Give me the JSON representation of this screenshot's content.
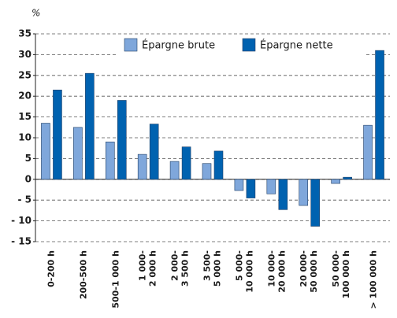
{
  "chart_data": {
    "type": "bar",
    "unit_label": "%",
    "categories": [
      [
        "0-200 h"
      ],
      [
        "200-500 h"
      ],
      [
        "500-1 000 h"
      ],
      [
        "1 000-",
        "2 000 h"
      ],
      [
        "2 000-",
        "3 500 h"
      ],
      [
        "3 500-",
        "5 000 h"
      ],
      [
        "5 000-",
        "10 000 h"
      ],
      [
        "10 000-",
        "20 000 h"
      ],
      [
        "20 000-",
        "50 000 h"
      ],
      [
        "50 000-",
        "100 000 h"
      ],
      [
        "> 100 000 h"
      ]
    ],
    "series": [
      {
        "name": "Épargne brute",
        "color": "#7fa7db",
        "values": [
          13.5,
          12.5,
          9,
          6,
          4.3,
          3.8,
          -2.7,
          -3.5,
          -6.3,
          -1,
          13
        ]
      },
      {
        "name": "Épargne nette",
        "color": "#0062b0",
        "values": [
          21.5,
          25.5,
          19,
          13.3,
          7.8,
          6.8,
          -4.5,
          -7.3,
          -11.3,
          0.5,
          31
        ]
      }
    ],
    "ylim": [
      -15,
      35
    ],
    "yticks": [
      {
        "value": -15,
        "label": "- 15"
      },
      {
        "value": -10,
        "label": "- 10"
      },
      {
        "value": -5,
        "label": "- 5"
      },
      0,
      5,
      10,
      15,
      20,
      25,
      30,
      35
    ],
    "grid": true,
    "legend": "top"
  }
}
